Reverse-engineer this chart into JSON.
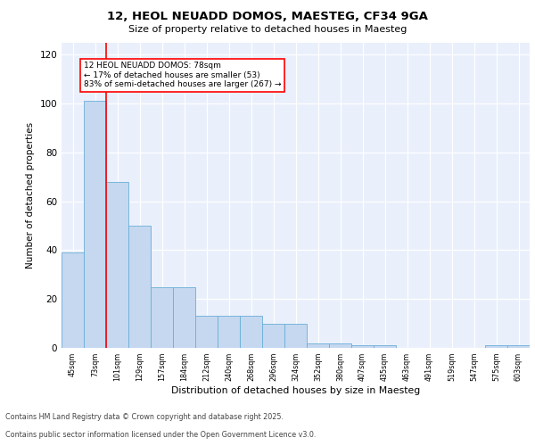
{
  "title_line1": "12, HEOL NEUADD DOMOS, MAESTEG, CF34 9GA",
  "title_line2": "Size of property relative to detached houses in Maesteg",
  "xlabel": "Distribution of detached houses by size in Maesteg",
  "ylabel": "Number of detached properties",
  "categories": [
    "45sqm",
    "73sqm",
    "101sqm",
    "129sqm",
    "157sqm",
    "184sqm",
    "212sqm",
    "240sqm",
    "268sqm",
    "296sqm",
    "324sqm",
    "352sqm",
    "380sqm",
    "407sqm",
    "435sqm",
    "463sqm",
    "491sqm",
    "519sqm",
    "547sqm",
    "575sqm",
    "603sqm"
  ],
  "values": [
    39,
    101,
    68,
    50,
    25,
    25,
    13,
    13,
    13,
    10,
    10,
    2,
    2,
    1,
    1,
    0,
    0,
    0,
    0,
    1,
    1
  ],
  "bar_color": "#c5d8f0",
  "bar_edge_color": "#6aaed6",
  "red_line_index": 1,
  "annotation_title": "12 HEOL NEUADD DOMOS: 78sqm",
  "annotation_line2": "← 17% of detached houses are smaller (53)",
  "annotation_line3": "83% of semi-detached houses are larger (267) →",
  "annotation_box_color": "white",
  "annotation_box_edge": "red",
  "ylim": [
    0,
    125
  ],
  "yticks": [
    0,
    20,
    40,
    60,
    80,
    100,
    120
  ],
  "background_color": "#eaf0fb",
  "grid_color": "white",
  "footer_line1": "Contains HM Land Registry data © Crown copyright and database right 2025.",
  "footer_line2": "Contains public sector information licensed under the Open Government Licence v3.0."
}
